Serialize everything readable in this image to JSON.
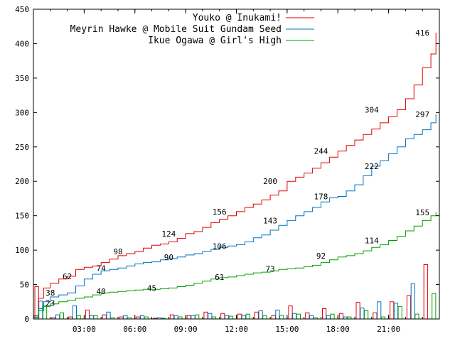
{
  "chart_data": {
    "type": "line",
    "x_unit": "hours",
    "xlim": [
      0,
      24
    ],
    "ylim": [
      0,
      450
    ],
    "y_ticks": [
      0,
      50,
      100,
      150,
      200,
      250,
      300,
      350,
      400,
      450
    ],
    "x_ticks": [
      {
        "value": 3,
        "label": "03:00"
      },
      {
        "value": 6,
        "label": "06:00"
      },
      {
        "value": 9,
        "label": "09:00"
      },
      {
        "value": 12,
        "label": "12:00"
      },
      {
        "value": 15,
        "label": "15:00"
      },
      {
        "value": 18,
        "label": "18:00"
      },
      {
        "value": 21,
        "label": "21:00"
      }
    ],
    "grid": false,
    "legend_position": "top-right",
    "series": [
      {
        "name": "Youko @ Inukami!",
        "color": "#e00000",
        "cumulative": [
          [
            0,
            5
          ],
          [
            0.3,
            30
          ],
          [
            0.6,
            45
          ],
          [
            1,
            52
          ],
          [
            1.5,
            58
          ],
          [
            2,
            62
          ],
          [
            2.5,
            72
          ],
          [
            3,
            75
          ],
          [
            3.5,
            77
          ],
          [
            4,
            82
          ],
          [
            4.5,
            87
          ],
          [
            5,
            92
          ],
          [
            5.5,
            95
          ],
          [
            6,
            98
          ],
          [
            6.5,
            103
          ],
          [
            7,
            107
          ],
          [
            7.5,
            109
          ],
          [
            8,
            112
          ],
          [
            8.5,
            117
          ],
          [
            9,
            124
          ],
          [
            9.5,
            127
          ],
          [
            10,
            133
          ],
          [
            10.5,
            140
          ],
          [
            11,
            145
          ],
          [
            11.5,
            150
          ],
          [
            12,
            156
          ],
          [
            12.5,
            162
          ],
          [
            13,
            167
          ],
          [
            13.5,
            173
          ],
          [
            14,
            180
          ],
          [
            14.5,
            186
          ],
          [
            15,
            200
          ],
          [
            15.5,
            206
          ],
          [
            16,
            212
          ],
          [
            16.5,
            219
          ],
          [
            17,
            227
          ],
          [
            17.5,
            235
          ],
          [
            18,
            244
          ],
          [
            18.5,
            252
          ],
          [
            19,
            260
          ],
          [
            19.5,
            268
          ],
          [
            20,
            276
          ],
          [
            20.5,
            285
          ],
          [
            21,
            294
          ],
          [
            21.5,
            304
          ],
          [
            22,
            320
          ],
          [
            22.5,
            340
          ],
          [
            23,
            365
          ],
          [
            23.5,
            385
          ],
          [
            23.8,
            416
          ]
        ],
        "hourly": [
          47,
          2,
          3,
          13,
          6,
          3,
          3,
          1,
          6,
          5,
          10,
          8,
          7,
          10,
          5,
          19,
          9,
          15,
          8,
          24,
          9,
          25,
          34,
          79
        ],
        "labels": [
          {
            "x": 2,
            "value": 62
          },
          {
            "x": 5,
            "value": 98
          },
          {
            "x": 8,
            "value": 124
          },
          {
            "x": 11,
            "value": 156
          },
          {
            "x": 14,
            "value": 200
          },
          {
            "x": 17,
            "value": 244
          },
          {
            "x": 20,
            "value": 304
          },
          {
            "x": 23,
            "value": 416
          }
        ]
      },
      {
        "name": "Meyrin Hawke @ Mobile Suit Gundam Seed",
        "color": "#0070c0",
        "cumulative": [
          [
            0,
            3
          ],
          [
            0.3,
            15
          ],
          [
            0.6,
            25
          ],
          [
            1,
            32
          ],
          [
            1.5,
            35
          ],
          [
            2,
            38
          ],
          [
            2.5,
            48
          ],
          [
            3,
            58
          ],
          [
            3.5,
            65
          ],
          [
            4,
            70
          ],
          [
            4.5,
            72
          ],
          [
            5,
            74
          ],
          [
            5.5,
            77
          ],
          [
            6,
            80
          ],
          [
            6.5,
            82
          ],
          [
            7,
            83
          ],
          [
            7.5,
            86
          ],
          [
            8,
            88
          ],
          [
            8.5,
            90
          ],
          [
            9,
            93
          ],
          [
            9.5,
            95
          ],
          [
            10,
            98
          ],
          [
            10.5,
            101
          ],
          [
            11,
            104
          ],
          [
            11.5,
            106
          ],
          [
            12,
            108
          ],
          [
            12.5,
            112
          ],
          [
            13,
            118
          ],
          [
            13.5,
            122
          ],
          [
            14,
            129
          ],
          [
            14.5,
            136
          ],
          [
            15,
            143
          ],
          [
            15.5,
            150
          ],
          [
            16,
            156
          ],
          [
            16.5,
            162
          ],
          [
            17,
            170
          ],
          [
            17.5,
            176
          ],
          [
            18,
            178
          ],
          [
            18.5,
            186
          ],
          [
            19,
            195
          ],
          [
            19.5,
            208
          ],
          [
            20,
            222
          ],
          [
            20.5,
            230
          ],
          [
            21,
            240
          ],
          [
            21.5,
            250
          ],
          [
            22,
            262
          ],
          [
            22.5,
            268
          ],
          [
            23,
            275
          ],
          [
            23.5,
            285
          ],
          [
            23.8,
            297
          ]
        ],
        "hourly": [
          26,
          6,
          19,
          5,
          10,
          5,
          5,
          2,
          5,
          5,
          8,
          5,
          5,
          12,
          13,
          8,
          5,
          5,
          3,
          16,
          25,
          23,
          51,
          0
        ],
        "labels": [
          {
            "x": 1,
            "value": 38
          },
          {
            "x": 4,
            "value": 74
          },
          {
            "x": 8,
            "value": 90
          },
          {
            "x": 11,
            "value": 106
          },
          {
            "x": 14,
            "value": 143
          },
          {
            "x": 17,
            "value": 178
          },
          {
            "x": 20,
            "value": 222
          },
          {
            "x": 23,
            "value": 297
          }
        ]
      },
      {
        "name": "Ikue Ogawa @ Girl's High",
        "color": "#00a000",
        "cumulative": [
          [
            0,
            2
          ],
          [
            0.3,
            12
          ],
          [
            0.6,
            18
          ],
          [
            1,
            22
          ],
          [
            1.5,
            25
          ],
          [
            2,
            27
          ],
          [
            2.5,
            30
          ],
          [
            3,
            32
          ],
          [
            3.5,
            35
          ],
          [
            4,
            38
          ],
          [
            4.5,
            39
          ],
          [
            5,
            40
          ],
          [
            5.5,
            41
          ],
          [
            6,
            42
          ],
          [
            6.5,
            43
          ],
          [
            7,
            43
          ],
          [
            7.5,
            44
          ],
          [
            8,
            45
          ],
          [
            8.5,
            47
          ],
          [
            9,
            49
          ],
          [
            9.5,
            52
          ],
          [
            10,
            55
          ],
          [
            10.5,
            58
          ],
          [
            11,
            60
          ],
          [
            11.5,
            61
          ],
          [
            12,
            63
          ],
          [
            12.5,
            65
          ],
          [
            13,
            67
          ],
          [
            13.5,
            68
          ],
          [
            14,
            70
          ],
          [
            14.5,
            72
          ],
          [
            15,
            73
          ],
          [
            15.5,
            74
          ],
          [
            16,
            76
          ],
          [
            16.5,
            78
          ],
          [
            17,
            82
          ],
          [
            17.5,
            86
          ],
          [
            18,
            90
          ],
          [
            18.5,
            92
          ],
          [
            19,
            95
          ],
          [
            19.5,
            99
          ],
          [
            20,
            104
          ],
          [
            20.5,
            108
          ],
          [
            21,
            114
          ],
          [
            21.5,
            120
          ],
          [
            22,
            128
          ],
          [
            22.5,
            135
          ],
          [
            23,
            143
          ],
          [
            23.5,
            150
          ],
          [
            23.8,
            155
          ]
        ],
        "hourly": [
          20,
          9,
          5,
          5,
          2,
          2,
          3,
          1,
          3,
          6,
          3,
          4,
          7,
          5,
          5,
          7,
          2,
          7,
          3,
          12,
          3,
          18,
          7,
          37
        ],
        "labels": [
          {
            "x": 1,
            "value": 23
          },
          {
            "x": 4,
            "value": 40
          },
          {
            "x": 7,
            "value": 45
          },
          {
            "x": 11,
            "value": 61
          },
          {
            "x": 14,
            "value": 73
          },
          {
            "x": 17,
            "value": 92
          },
          {
            "x": 20,
            "value": 114
          },
          {
            "x": 23,
            "value": 155
          }
        ]
      }
    ]
  }
}
